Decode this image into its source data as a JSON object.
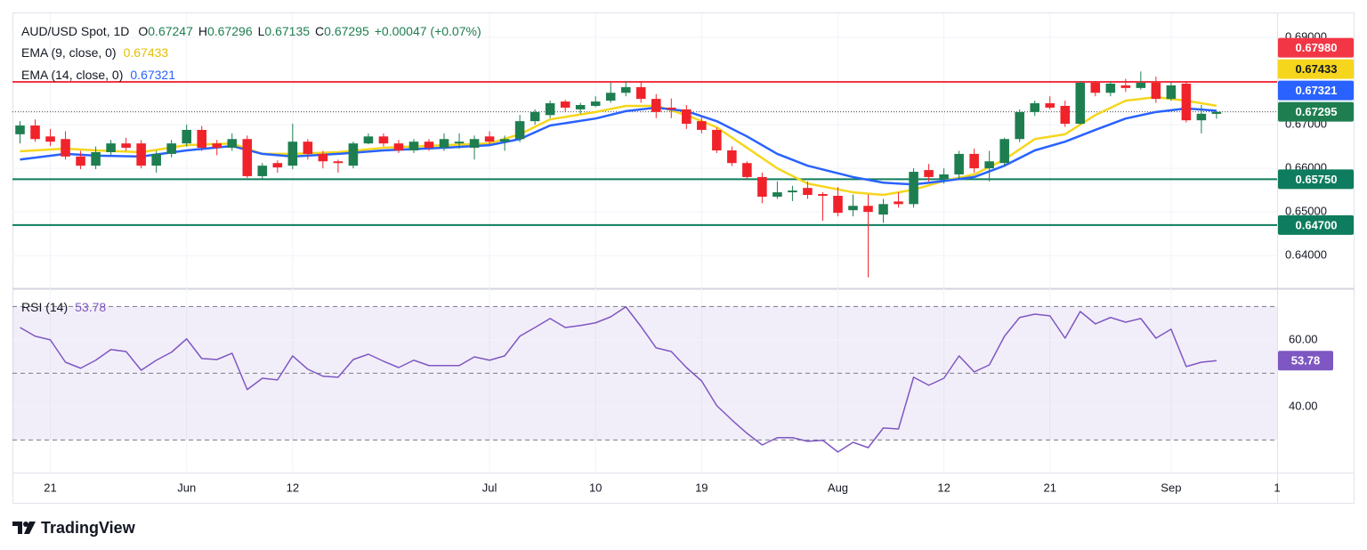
{
  "chart_data": [
    {
      "type": "candlestick",
      "title": "AUD/USD Spot, 1D",
      "legend_fields": [
        {
          "key": "O",
          "label": "0.67247"
        },
        {
          "key": "H",
          "label": "0.67296"
        },
        {
          "key": "L",
          "label": "0.67135"
        },
        {
          "key": "C",
          "label": "0.67295"
        }
      ],
      "change_label": "+0.00047 (+0.07%)",
      "last_label": "0.67295",
      "up_color": "#1e7e50",
      "down_color": "#f0232b",
      "open": [
        0.6678,
        0.6698,
        0.6673,
        0.6667,
        0.6627,
        0.6606,
        0.6637,
        0.6657,
        0.6657,
        0.6606,
        0.6633,
        0.6657,
        0.6688,
        0.6657,
        0.6647,
        0.6667,
        0.6582,
        0.6612,
        0.6606,
        0.6661,
        0.6633,
        0.6616,
        0.6606,
        0.6657,
        0.6673,
        0.6657,
        0.6641,
        0.6661,
        0.6647,
        0.6657,
        0.6647,
        0.6673,
        0.6661,
        0.6667,
        0.6708,
        0.6722,
        0.6753,
        0.6735,
        0.6743,
        0.6755,
        0.6773,
        0.6786,
        0.6759,
        0.6739,
        0.6735,
        0.6708,
        0.6688,
        0.6641,
        0.6612,
        0.658,
        0.6535,
        0.6545,
        0.6555,
        0.6541,
        0.6537,
        0.6504,
        0.6514,
        0.6494,
        0.6524,
        0.6518,
        0.6596,
        0.6576,
        0.6586,
        0.6633,
        0.66,
        0.6612,
        0.6667,
        0.6729,
        0.6749,
        0.6743,
        0.6702,
        0.6796,
        0.6773,
        0.679,
        0.6784,
        0.6796,
        0.6759,
        0.6794,
        0.671,
        0.67247
      ],
      "high": [
        0.6708,
        0.6712,
        0.669,
        0.6685,
        0.664,
        0.665,
        0.6665,
        0.667,
        0.6665,
        0.664,
        0.6665,
        0.67,
        0.6697,
        0.6665,
        0.668,
        0.6675,
        0.6612,
        0.6618,
        0.6702,
        0.6667,
        0.664,
        0.662,
        0.6661,
        0.668,
        0.668,
        0.6665,
        0.6667,
        0.6667,
        0.668,
        0.668,
        0.6675,
        0.6685,
        0.6675,
        0.6722,
        0.6735,
        0.6755,
        0.6757,
        0.675,
        0.6765,
        0.6796,
        0.68,
        0.6798,
        0.677,
        0.676,
        0.6745,
        0.6718,
        0.6693,
        0.665,
        0.6616,
        0.659,
        0.657,
        0.656,
        0.657,
        0.6545,
        0.6557,
        0.654,
        0.654,
        0.653,
        0.6545,
        0.66,
        0.661,
        0.66,
        0.664,
        0.6645,
        0.664,
        0.667,
        0.6735,
        0.6755,
        0.6765,
        0.6755,
        0.68,
        0.68,
        0.6798,
        0.6805,
        0.6822,
        0.681,
        0.6798,
        0.68,
        0.6745,
        0.67296
      ],
      "low": [
        0.6657,
        0.6661,
        0.6651,
        0.662,
        0.6598,
        0.6598,
        0.663,
        0.664,
        0.66,
        0.659,
        0.6625,
        0.665,
        0.664,
        0.663,
        0.664,
        0.6578,
        0.6575,
        0.659,
        0.6598,
        0.662,
        0.66,
        0.659,
        0.66,
        0.6655,
        0.665,
        0.6635,
        0.6635,
        0.664,
        0.664,
        0.6645,
        0.662,
        0.6655,
        0.664,
        0.666,
        0.67,
        0.6715,
        0.673,
        0.6725,
        0.674,
        0.675,
        0.6765,
        0.675,
        0.6715,
        0.6715,
        0.669,
        0.668,
        0.6635,
        0.6605,
        0.6575,
        0.652,
        0.653,
        0.6525,
        0.653,
        0.648,
        0.649,
        0.649,
        0.635,
        0.6475,
        0.651,
        0.651,
        0.657,
        0.6565,
        0.6575,
        0.659,
        0.657,
        0.6605,
        0.666,
        0.672,
        0.6735,
        0.6695,
        0.67,
        0.6765,
        0.6765,
        0.6775,
        0.678,
        0.675,
        0.6755,
        0.6705,
        0.668,
        0.67135
      ],
      "close": [
        0.6698,
        0.6667,
        0.6661,
        0.6627,
        0.6606,
        0.6637,
        0.6657,
        0.6647,
        0.6606,
        0.6633,
        0.6657,
        0.6688,
        0.6647,
        0.6647,
        0.6667,
        0.6582,
        0.6606,
        0.6602,
        0.6661,
        0.6633,
        0.6616,
        0.6612,
        0.6657,
        0.6673,
        0.6657,
        0.6641,
        0.6661,
        0.6647,
        0.6667,
        0.6661,
        0.6667,
        0.6661,
        0.6667,
        0.6708,
        0.6729,
        0.6749,
        0.6739,
        0.6745,
        0.6753,
        0.6773,
        0.6786,
        0.6759,
        0.6729,
        0.6735,
        0.6702,
        0.6688,
        0.6641,
        0.6612,
        0.658,
        0.6535,
        0.6545,
        0.6549,
        0.6539,
        0.6537,
        0.6498,
        0.6514,
        0.65,
        0.6518,
        0.6518,
        0.6592,
        0.658,
        0.6586,
        0.6633,
        0.66,
        0.6616,
        0.6667,
        0.6729,
        0.6749,
        0.6739,
        0.6702,
        0.6796,
        0.6773,
        0.6794,
        0.6784,
        0.6796,
        0.6759,
        0.679,
        0.671,
        0.6725,
        0.67295
      ],
      "series": [
        {
          "name": "EMA (9, close, 0)",
          "value_label": "0.67433",
          "color": "#f5d61d",
          "x": [
            0,
            3,
            5,
            8,
            11,
            14,
            16,
            18,
            21,
            24,
            28,
            31,
            33,
            35,
            38,
            40,
            42,
            44,
            46,
            48,
            50,
            52,
            55,
            57,
            59,
            61,
            63,
            65,
            67,
            69,
            71,
            73,
            75,
            77,
            79
          ],
          "values": [
            0.6639,
            0.6645,
            0.6641,
            0.6637,
            0.6653,
            0.6657,
            0.6633,
            0.6633,
            0.6637,
            0.6647,
            0.6653,
            0.6657,
            0.6678,
            0.6712,
            0.6729,
            0.6743,
            0.6743,
            0.6722,
            0.6694,
            0.6647,
            0.66,
            0.6565,
            0.6545,
            0.6539,
            0.6551,
            0.6571,
            0.6586,
            0.662,
            0.6667,
            0.6678,
            0.6722,
            0.6755,
            0.6763,
            0.6755,
            0.67433
          ]
        },
        {
          "name": "EMA (14, close, 0)",
          "value_label": "0.67321",
          "color": "#2962ff",
          "x": [
            0,
            3,
            5,
            8,
            11,
            14,
            16,
            18,
            21,
            24,
            28,
            31,
            33,
            35,
            38,
            40,
            42,
            44,
            46,
            48,
            50,
            52,
            55,
            57,
            59,
            61,
            63,
            65,
            67,
            69,
            71,
            73,
            75,
            77,
            79
          ],
          "values": [
            0.662,
            0.6633,
            0.6629,
            0.6627,
            0.6641,
            0.6651,
            0.6633,
            0.6627,
            0.6633,
            0.6641,
            0.6647,
            0.6653,
            0.6667,
            0.6698,
            0.6714,
            0.6731,
            0.6739,
            0.6731,
            0.6708,
            0.6673,
            0.6633,
            0.6606,
            0.658,
            0.6567,
            0.6563,
            0.6571,
            0.658,
            0.6606,
            0.6641,
            0.6661,
            0.6688,
            0.6714,
            0.6729,
            0.6737,
            0.67321
          ]
        }
      ],
      "levels": [
        {
          "value": 0.6798,
          "label": "0.67980",
          "color": "#f23645"
        },
        {
          "value": 0.6575,
          "label": "0.65750",
          "color": "#0e7c5e"
        },
        {
          "value": 0.647,
          "label": "0.64700",
          "color": "#0e7c5e"
        }
      ],
      "xlim": [
        -0.5,
        83
      ],
      "xticks": [
        {
          "value": 2,
          "label": "21"
        },
        {
          "value": 11,
          "label": "Jun"
        },
        {
          "value": 18,
          "label": "12"
        },
        {
          "value": 31,
          "label": "Jul"
        },
        {
          "value": 38,
          "label": "10"
        },
        {
          "value": 45,
          "label": "19"
        },
        {
          "value": 54,
          "label": "Aug"
        },
        {
          "value": 61,
          "label": "12"
        },
        {
          "value": 68,
          "label": "21"
        },
        {
          "value": 76,
          "label": "Sep"
        },
        {
          "value": 83,
          "label": "1"
        }
      ],
      "ylim": [
        0.6327,
        0.6955
      ],
      "yticks": [
        {
          "value": 0.64,
          "label": "0.64000"
        },
        {
          "value": 0.65,
          "label": "0.65000"
        },
        {
          "value": 0.66,
          "label": "0.66000"
        },
        {
          "value": 0.67,
          "label": "0.67000"
        },
        {
          "value": 0.69,
          "label": "0.69000"
        }
      ],
      "grid": true
    },
    {
      "type": "line",
      "title": "RSI (14)",
      "value_label": "53.78",
      "color": "#7e57c2",
      "values": [
        63.7,
        61.1,
        60.0,
        53.3,
        51.5,
        53.9,
        57.1,
        56.5,
        50.9,
        53.9,
        56.3,
        60.3,
        54.4,
        54.1,
        56.0,
        45.1,
        48.5,
        48.0,
        55.2,
        51.2,
        49.1,
        48.8,
        54.1,
        55.7,
        53.6,
        51.7,
        53.9,
        52.3,
        52.3,
        52.3,
        54.9,
        53.9,
        55.2,
        61.1,
        63.7,
        66.4,
        63.7,
        64.3,
        65.1,
        66.9,
        69.9,
        64.0,
        57.6,
        56.5,
        51.7,
        47.7,
        40.3,
        36.0,
        32.0,
        28.5,
        30.7,
        30.7,
        29.6,
        29.9,
        26.4,
        29.3,
        27.7,
        33.6,
        33.3,
        48.8,
        46.4,
        48.5,
        55.2,
        50.4,
        52.5,
        61.1,
        66.7,
        67.7,
        67.2,
        60.5,
        68.5,
        64.8,
        66.7,
        65.3,
        66.4,
        60.5,
        63.2,
        52.0,
        53.3,
        53.78
      ],
      "levels": [
        70,
        50,
        30
      ],
      "ylim": [
        20.5,
        74.9
      ],
      "yticks": [
        {
          "value": 60,
          "label": "60.00"
        },
        {
          "value": 40,
          "label": "40.00"
        }
      ]
    }
  ],
  "footer": "TradingView"
}
